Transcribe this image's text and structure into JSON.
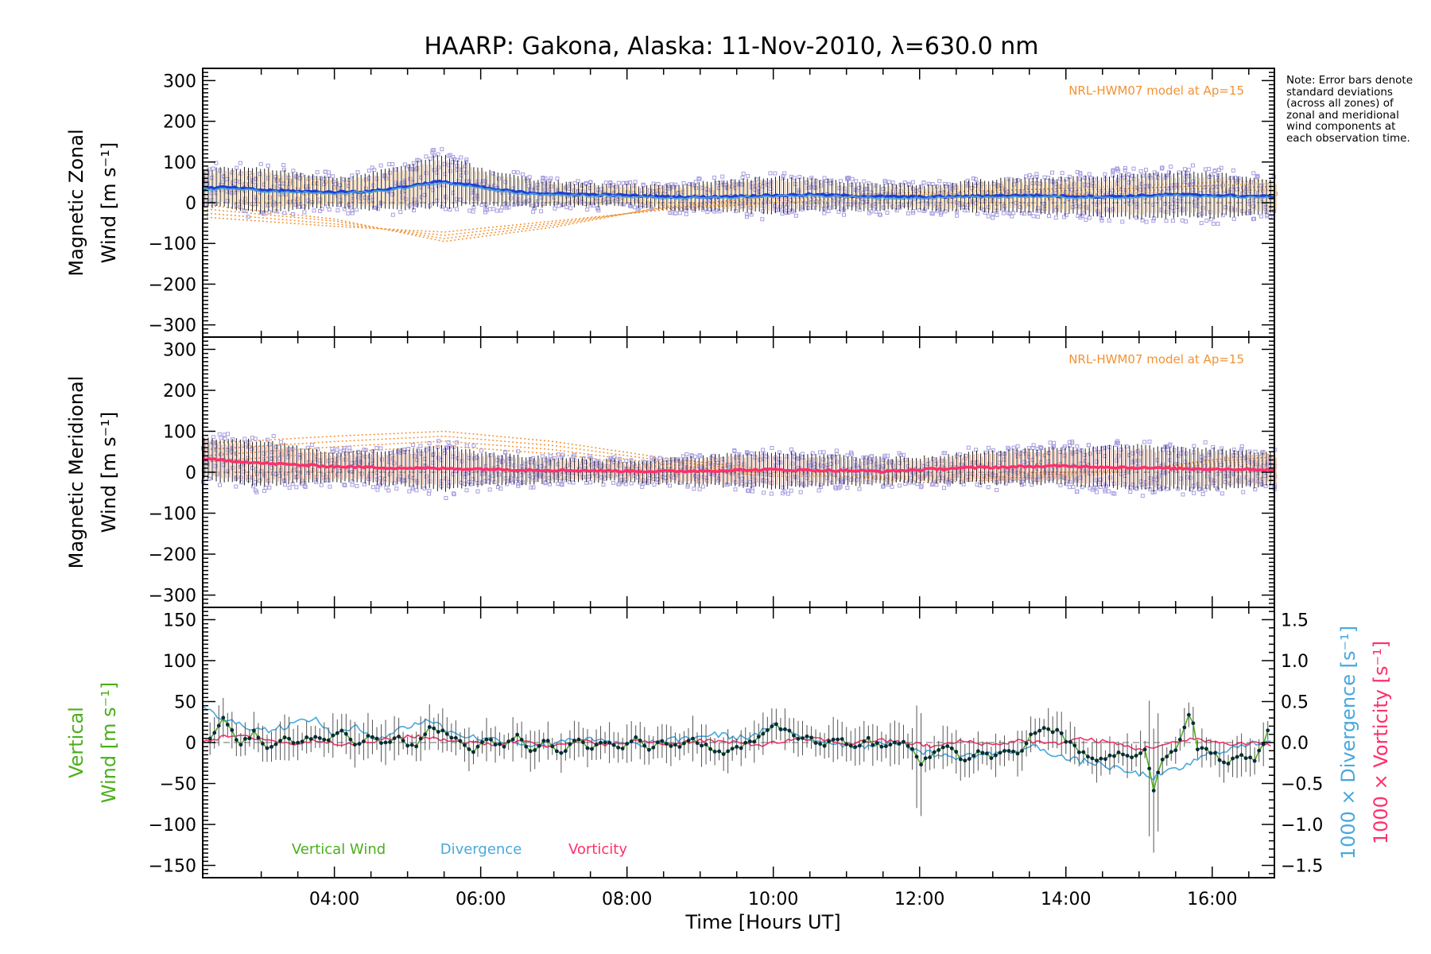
{
  "figure": {
    "title": "HAARP: Gakona,  Alaska: 11-Nov-2010, λ=630.0 nm",
    "note": "Note: Error bars denote standard deviations (across all zones) of zonal and meridional wind components at each observation time.",
    "xlabel": "Time [Hours UT]",
    "xticks": [
      "04:00",
      "06:00",
      "08:00",
      "10:00",
      "12:00",
      "14:00",
      "16:00"
    ]
  },
  "colors": {
    "zonal_mean": "#1f3fd6",
    "meridional_mean": "#ff2f6a",
    "model": "#f39234",
    "vertical": "#4caf1c",
    "divergence": "#49a8dc",
    "vorticity": "#ff2f6a",
    "zone_points": "#a89ee0",
    "error_bars": "#202020",
    "zonal_label": "#000000",
    "vertical_label": "#4caf1c"
  },
  "chart_data": [
    {
      "type": "line",
      "name": "zonal",
      "ylabel": "Magnetic Zonal",
      "ylabel2": "Wind [m s⁻¹]",
      "model_label": "NRL-HWM07 model at Ap=15",
      "xlim_hours": [
        2.2,
        16.85
      ],
      "ylim": [
        -330,
        330
      ],
      "yticks": [
        -300,
        -200,
        -100,
        0,
        100,
        200,
        300
      ],
      "mean": [
        [
          2.2,
          35
        ],
        [
          2.5,
          38
        ],
        [
          2.8,
          34
        ],
        [
          3.0,
          31
        ],
        [
          3.5,
          28
        ],
        [
          4.0,
          26
        ],
        [
          4.5,
          28
        ],
        [
          5.0,
          40
        ],
        [
          5.4,
          52
        ],
        [
          5.8,
          45
        ],
        [
          6.2,
          32
        ],
        [
          6.6,
          25
        ],
        [
          7.0,
          22
        ],
        [
          7.5,
          20
        ],
        [
          8.0,
          18
        ],
        [
          8.5,
          15
        ],
        [
          9.0,
          14
        ],
        [
          9.5,
          16
        ],
        [
          10.0,
          18
        ],
        [
          10.5,
          20
        ],
        [
          11.0,
          17
        ],
        [
          11.5,
          15
        ],
        [
          12.0,
          14
        ],
        [
          12.5,
          15
        ],
        [
          13.0,
          17
        ],
        [
          13.5,
          18
        ],
        [
          14.0,
          16
        ],
        [
          14.5,
          15
        ],
        [
          15.0,
          17
        ],
        [
          15.5,
          20
        ],
        [
          16.0,
          18
        ],
        [
          16.5,
          16
        ],
        [
          16.85,
          15
        ]
      ],
      "spread": [
        [
          2.2,
          45
        ],
        [
          3.0,
          55
        ],
        [
          4.0,
          35
        ],
        [
          5.0,
          55
        ],
        [
          5.5,
          65
        ],
        [
          6.0,
          45
        ],
        [
          7.0,
          30
        ],
        [
          8.0,
          25
        ],
        [
          9.0,
          35
        ],
        [
          10.0,
          45
        ],
        [
          11.0,
          35
        ],
        [
          12.0,
          30
        ],
        [
          13.0,
          40
        ],
        [
          14.0,
          45
        ],
        [
          15.0,
          55
        ],
        [
          16.0,
          55
        ],
        [
          16.85,
          40
        ]
      ],
      "model_curves": [
        [
          [
            2.2,
            -5
          ],
          [
            4.0,
            -40
          ],
          [
            5.5,
            -95
          ],
          [
            7.0,
            -60
          ],
          [
            8.5,
            -10
          ],
          [
            10.0,
            15
          ],
          [
            12.0,
            25
          ],
          [
            14.0,
            35
          ],
          [
            16.0,
            50
          ],
          [
            16.85,
            55
          ]
        ],
        [
          [
            2.2,
            -15
          ],
          [
            4.0,
            -45
          ],
          [
            5.5,
            -88
          ],
          [
            7.0,
            -55
          ],
          [
            8.5,
            -12
          ],
          [
            10.0,
            10
          ],
          [
            12.0,
            20
          ],
          [
            14.0,
            30
          ],
          [
            16.0,
            42
          ],
          [
            16.85,
            48
          ]
        ],
        [
          [
            2.2,
            -25
          ],
          [
            4.0,
            -52
          ],
          [
            5.5,
            -80
          ],
          [
            7.0,
            -50
          ],
          [
            8.5,
            -15
          ],
          [
            10.0,
            5
          ],
          [
            12.0,
            15
          ],
          [
            14.0,
            25
          ],
          [
            16.0,
            35
          ],
          [
            16.85,
            40
          ]
        ],
        [
          [
            2.2,
            -35
          ],
          [
            4.0,
            -58
          ],
          [
            5.5,
            -72
          ],
          [
            7.0,
            -45
          ],
          [
            8.5,
            -18
          ],
          [
            10.0,
            0
          ],
          [
            12.0,
            10
          ],
          [
            14.0,
            20
          ],
          [
            16.0,
            28
          ],
          [
            16.85,
            32
          ]
        ]
      ]
    },
    {
      "type": "line",
      "name": "meridional",
      "ylabel": "Magnetic Meridional",
      "ylabel2": "Wind [m s⁻¹]",
      "model_label": "NRL-HWM07 model at Ap=15",
      "xlim_hours": [
        2.2,
        16.85
      ],
      "ylim": [
        -330,
        330
      ],
      "yticks": [
        -300,
        -200,
        -100,
        0,
        100,
        200,
        300
      ],
      "mean": [
        [
          2.2,
          32
        ],
        [
          2.6,
          28
        ],
        [
          3.0,
          22
        ],
        [
          3.5,
          18
        ],
        [
          4.0,
          14
        ],
        [
          4.5,
          12
        ],
        [
          5.0,
          10
        ],
        [
          5.5,
          9
        ],
        [
          6.0,
          8
        ],
        [
          6.5,
          6
        ],
        [
          7.0,
          5
        ],
        [
          7.5,
          4
        ],
        [
          8.0,
          3
        ],
        [
          8.5,
          2
        ],
        [
          9.0,
          3
        ],
        [
          9.5,
          5
        ],
        [
          10.0,
          6
        ],
        [
          10.5,
          5
        ],
        [
          11.0,
          4
        ],
        [
          11.5,
          2
        ],
        [
          12.0,
          6
        ],
        [
          12.5,
          10
        ],
        [
          13.0,
          12
        ],
        [
          13.5,
          14
        ],
        [
          14.0,
          15
        ],
        [
          14.5,
          13
        ],
        [
          15.0,
          11
        ],
        [
          15.5,
          9
        ],
        [
          16.0,
          8
        ],
        [
          16.5,
          7
        ],
        [
          16.85,
          6
        ]
      ],
      "spread": [
        [
          2.2,
          50
        ],
        [
          3.0,
          55
        ],
        [
          4.0,
          35
        ],
        [
          5.0,
          45
        ],
        [
          5.5,
          55
        ],
        [
          6.0,
          40
        ],
        [
          7.0,
          30
        ],
        [
          8.0,
          25
        ],
        [
          9.0,
          35
        ],
        [
          10.0,
          45
        ],
        [
          11.0,
          35
        ],
        [
          12.0,
          30
        ],
        [
          13.0,
          40
        ],
        [
          14.0,
          45
        ],
        [
          15.0,
          55
        ],
        [
          16.0,
          50
        ],
        [
          16.85,
          40
        ]
      ],
      "model_curves": [
        [
          [
            2.2,
            70
          ],
          [
            4.0,
            88
          ],
          [
            5.5,
            100
          ],
          [
            7.0,
            75
          ],
          [
            8.5,
            35
          ],
          [
            10.0,
            5
          ],
          [
            12.0,
            -25
          ],
          [
            14.0,
            -15
          ],
          [
            16.0,
            30
          ],
          [
            16.85,
            45
          ]
        ],
        [
          [
            2.2,
            55
          ],
          [
            4.0,
            75
          ],
          [
            5.5,
            88
          ],
          [
            7.0,
            65
          ],
          [
            8.5,
            28
          ],
          [
            10.0,
            0
          ],
          [
            12.0,
            -20
          ],
          [
            14.0,
            -10
          ],
          [
            16.0,
            25
          ],
          [
            16.85,
            38
          ]
        ],
        [
          [
            2.2,
            40
          ],
          [
            4.0,
            62
          ],
          [
            5.5,
            76
          ],
          [
            7.0,
            55
          ],
          [
            8.5,
            20
          ],
          [
            10.0,
            -5
          ],
          [
            12.0,
            -15
          ],
          [
            14.0,
            -5
          ],
          [
            16.0,
            20
          ],
          [
            16.85,
            30
          ]
        ],
        [
          [
            2.2,
            25
          ],
          [
            4.0,
            48
          ],
          [
            5.5,
            64
          ],
          [
            7.0,
            45
          ],
          [
            8.5,
            12
          ],
          [
            10.0,
            -10
          ],
          [
            12.0,
            -10
          ],
          [
            14.0,
            0
          ],
          [
            16.0,
            15
          ],
          [
            16.85,
            22
          ]
        ]
      ]
    },
    {
      "type": "line",
      "name": "vertical",
      "ylabel": "Vertical",
      "ylabel2": "Wind [m s⁻¹]",
      "y2label": "1000 × Divergence [s⁻¹]",
      "y3label": "1000 × Vorticity [s⁻¹]",
      "xlim_hours": [
        2.2,
        16.85
      ],
      "ylim": [
        -165,
        165
      ],
      "yticks": [
        -150,
        -100,
        -50,
        0,
        50,
        100,
        150
      ],
      "y2lim": [
        -1.65,
        1.65
      ],
      "y2ticks": [
        -1.5,
        -1.0,
        -0.5,
        0.0,
        0.5,
        1.0,
        1.5
      ],
      "legend": [
        "Vertical Wind",
        "Divergence",
        "Vorticity"
      ],
      "vertical_wind": [
        [
          2.3,
          5
        ],
        [
          2.5,
          32
        ],
        [
          2.7,
          -5
        ],
        [
          2.9,
          12
        ],
        [
          3.1,
          -8
        ],
        [
          3.3,
          5
        ],
        [
          3.5,
          -3
        ],
        [
          3.7,
          8
        ],
        [
          3.9,
          0
        ],
        [
          4.1,
          15
        ],
        [
          4.3,
          -5
        ],
        [
          4.5,
          10
        ],
        [
          4.7,
          -2
        ],
        [
          4.9,
          6
        ],
        [
          5.1,
          -8
        ],
        [
          5.3,
          20
        ],
        [
          5.5,
          12
        ],
        [
          5.7,
          2
        ],
        [
          5.9,
          -10
        ],
        [
          6.1,
          5
        ],
        [
          6.3,
          -5
        ],
        [
          6.5,
          8
        ],
        [
          6.7,
          -12
        ],
        [
          6.9,
          2
        ],
        [
          7.1,
          -15
        ],
        [
          7.3,
          4
        ],
        [
          7.5,
          -6
        ],
        [
          7.7,
          0
        ],
        [
          7.9,
          -10
        ],
        [
          8.1,
          5
        ],
        [
          8.3,
          -8
        ],
        [
          8.5,
          2
        ],
        [
          8.7,
          -6
        ],
        [
          8.9,
          3
        ],
        [
          9.1,
          -5
        ],
        [
          9.3,
          -12
        ],
        [
          9.5,
          -8
        ],
        [
          9.7,
          0
        ],
        [
          9.9,
          10
        ],
        [
          10.0,
          22
        ],
        [
          10.1,
          18
        ],
        [
          10.3,
          8
        ],
        [
          10.5,
          5
        ],
        [
          10.7,
          -3
        ],
        [
          10.9,
          6
        ],
        [
          11.1,
          -5
        ],
        [
          11.3,
          3
        ],
        [
          11.5,
          -8
        ],
        [
          11.7,
          2
        ],
        [
          11.9,
          -6
        ],
        [
          12.0,
          -28
        ],
        [
          12.2,
          -10
        ],
        [
          12.4,
          -5
        ],
        [
          12.6,
          -22
        ],
        [
          12.8,
          -12
        ],
        [
          13.0,
          -18
        ],
        [
          13.2,
          -8
        ],
        [
          13.4,
          -12
        ],
        [
          13.5,
          8
        ],
        [
          13.7,
          18
        ],
        [
          13.9,
          12
        ],
        [
          14.1,
          -5
        ],
        [
          14.3,
          -15
        ],
        [
          14.5,
          -22
        ],
        [
          14.7,
          -12
        ],
        [
          14.9,
          -18
        ],
        [
          15.1,
          -8
        ],
        [
          15.2,
          -60
        ],
        [
          15.3,
          -20
        ],
        [
          15.5,
          -10
        ],
        [
          15.7,
          42
        ],
        [
          15.8,
          -8
        ],
        [
          16.0,
          -12
        ],
        [
          16.2,
          -25
        ],
        [
          16.4,
          -15
        ],
        [
          16.6,
          -20
        ],
        [
          16.8,
          20
        ]
      ],
      "divergence": [
        [
          2.2,
          0.42
        ],
        [
          2.5,
          0.28
        ],
        [
          2.8,
          0.2
        ],
        [
          3.1,
          0.15
        ],
        [
          3.4,
          0.22
        ],
        [
          3.7,
          0.3
        ],
        [
          4.0,
          0.1
        ],
        [
          4.3,
          0.18
        ],
        [
          4.6,
          0.05
        ],
        [
          5.0,
          0.2
        ],
        [
          5.3,
          0.28
        ],
        [
          5.6,
          0.12
        ],
        [
          6.0,
          0.05
        ],
        [
          6.4,
          0.02
        ],
        [
          6.8,
          -0.05
        ],
        [
          7.2,
          0.05
        ],
        [
          7.6,
          0.02
        ],
        [
          8.0,
          -0.03
        ],
        [
          8.4,
          0.0
        ],
        [
          8.8,
          0.05
        ],
        [
          9.2,
          0.1
        ],
        [
          9.6,
          0.05
        ],
        [
          10.0,
          0.2
        ],
        [
          10.4,
          0.05
        ],
        [
          10.8,
          0.0
        ],
        [
          11.2,
          -0.05
        ],
        [
          11.6,
          0.02
        ],
        [
          12.0,
          -0.1
        ],
        [
          12.4,
          -0.18
        ],
        [
          12.8,
          -0.15
        ],
        [
          13.2,
          -0.12
        ],
        [
          13.6,
          -0.05
        ],
        [
          14.0,
          -0.2
        ],
        [
          14.4,
          -0.25
        ],
        [
          14.8,
          -0.35
        ],
        [
          15.2,
          -0.42
        ],
        [
          15.6,
          -0.3
        ],
        [
          16.0,
          -0.12
        ],
        [
          16.4,
          -0.05
        ],
        [
          16.85,
          0.05
        ]
      ],
      "vorticity": [
        [
          2.2,
          0.02
        ],
        [
          2.6,
          0.08
        ],
        [
          3.0,
          0.05
        ],
        [
          3.4,
          -0.02
        ],
        [
          3.8,
          0.03
        ],
        [
          4.2,
          -0.03
        ],
        [
          4.6,
          0.02
        ],
        [
          5.0,
          0.08
        ],
        [
          5.4,
          0.05
        ],
        [
          5.8,
          0.0
        ],
        [
          6.2,
          -0.02
        ],
        [
          6.6,
          0.03
        ],
        [
          7.0,
          -0.05
        ],
        [
          7.4,
          0.02
        ],
        [
          7.8,
          -0.03
        ],
        [
          8.2,
          0.02
        ],
        [
          8.6,
          -0.02
        ],
        [
          9.0,
          0.03
        ],
        [
          9.4,
          0.0
        ],
        [
          9.8,
          -0.03
        ],
        [
          10.2,
          0.02
        ],
        [
          10.6,
          0.05
        ],
        [
          11.0,
          -0.02
        ],
        [
          11.4,
          0.03
        ],
        [
          11.8,
          0.0
        ],
        [
          12.2,
          -0.05
        ],
        [
          12.6,
          0.02
        ],
        [
          13.0,
          -0.03
        ],
        [
          13.4,
          0.03
        ],
        [
          13.8,
          -0.02
        ],
        [
          14.2,
          0.05
        ],
        [
          14.6,
          0.0
        ],
        [
          15.0,
          -0.08
        ],
        [
          15.4,
          -0.02
        ],
        [
          15.8,
          0.05
        ],
        [
          16.2,
          -0.02
        ],
        [
          16.6,
          0.0
        ],
        [
          16.85,
          -0.05
        ]
      ]
    }
  ]
}
